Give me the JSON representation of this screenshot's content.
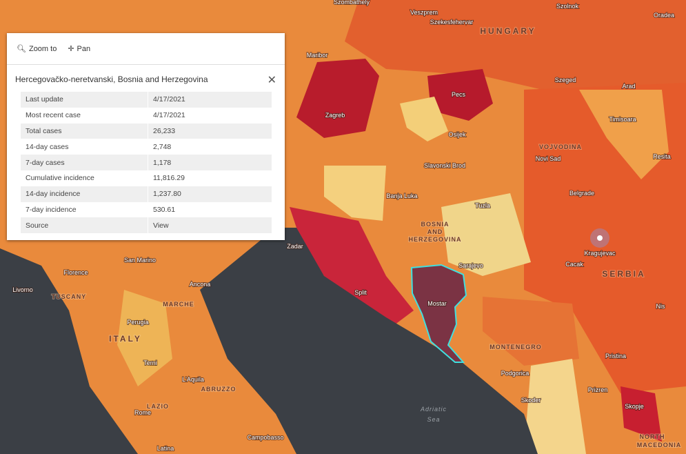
{
  "popup": {
    "toolbar": {
      "zoom": "Zoom to",
      "pan": "Pan"
    },
    "title": "Hercegovačko-neretvanski, Bosnia and Herzegovina",
    "rows": [
      [
        "Last update",
        "4/17/2021"
      ],
      [
        "Most recent case",
        "4/17/2021"
      ],
      [
        "Total cases",
        "26,233"
      ],
      [
        "14-day cases",
        "2,748"
      ],
      [
        "7-day cases",
        "1,178"
      ],
      [
        "Cumulative incidence",
        "11,816.29"
      ],
      [
        "14-day incidence",
        "1,237.80"
      ],
      [
        "7-day incidence",
        "530.61"
      ],
      [
        "Source",
        "View"
      ]
    ]
  },
  "map": {
    "labels": [
      "Szombathely",
      "Veszprem",
      "Szekesfehervar",
      "Szolnok",
      "Oradea",
      "HUNGARY",
      "Maribor",
      "Szeged",
      "Pecs",
      "Arad",
      "Zagreb",
      "Osijek",
      "Timisoara",
      "VOJVODINA",
      "Novi Sad",
      "Resita",
      "Slavonski Brod",
      "Banja Luka",
      "Tuzla",
      "Belgrade",
      "BOSNIA",
      "AND",
      "HERZEGOVINA",
      "Zadar",
      "Sarajevo",
      "Kragujevac",
      "Cacak",
      "SERBIA",
      "San Marino",
      "Florence",
      "Ancona",
      "Livorno",
      "TUSCANY",
      "Split",
      "Mostar",
      "Nis",
      "MARCHE",
      "Perugia",
      "ITALY",
      "MONTENEGRO",
      "Pristina",
      "Terni",
      "L'Aquila",
      "ABRUZZO",
      "Podgorica",
      "Prizren",
      "LAZIO",
      "Rome",
      "Adriatic",
      "Sea",
      "Skoder",
      "Skopje",
      "Campobasso",
      "Latina",
      "NORTH",
      "MACEDONIA"
    ]
  }
}
